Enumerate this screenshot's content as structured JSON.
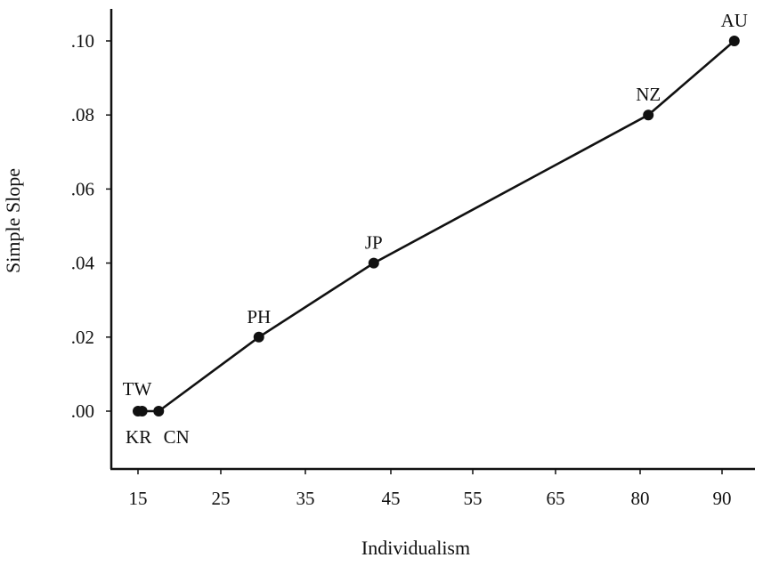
{
  "chart_data": {
    "type": "line",
    "title": "",
    "xlabel": "Individualism",
    "ylabel": "Simple Slope",
    "x_tick_labels": [
      "15",
      "25",
      "35",
      "45",
      "55",
      "65",
      "80",
      "90"
    ],
    "y_tick_labels": [
      ".00",
      ".02",
      ".04",
      ".06",
      ".08",
      ".10"
    ],
    "y_ticks": [
      0.0,
      0.02,
      0.04,
      0.06,
      0.08,
      0.1
    ],
    "ylim": [
      -0.016,
      0.109
    ],
    "grid": false,
    "legend": "none",
    "series": [
      {
        "points": [
          {
            "label": "TW",
            "x": 15,
            "y": 0.0
          },
          {
            "label": "KR",
            "x": 15.5,
            "y": 0.0
          },
          {
            "label": "CN",
            "x": 17.5,
            "y": 0.0
          },
          {
            "label": "PH",
            "x": 29.5,
            "y": 0.02
          },
          {
            "label": "JP",
            "x": 43,
            "y": 0.04
          },
          {
            "label": "NZ",
            "x": 81,
            "y": 0.08
          },
          {
            "label": "AU",
            "x": 91.5,
            "y": 0.1
          }
        ]
      }
    ]
  }
}
